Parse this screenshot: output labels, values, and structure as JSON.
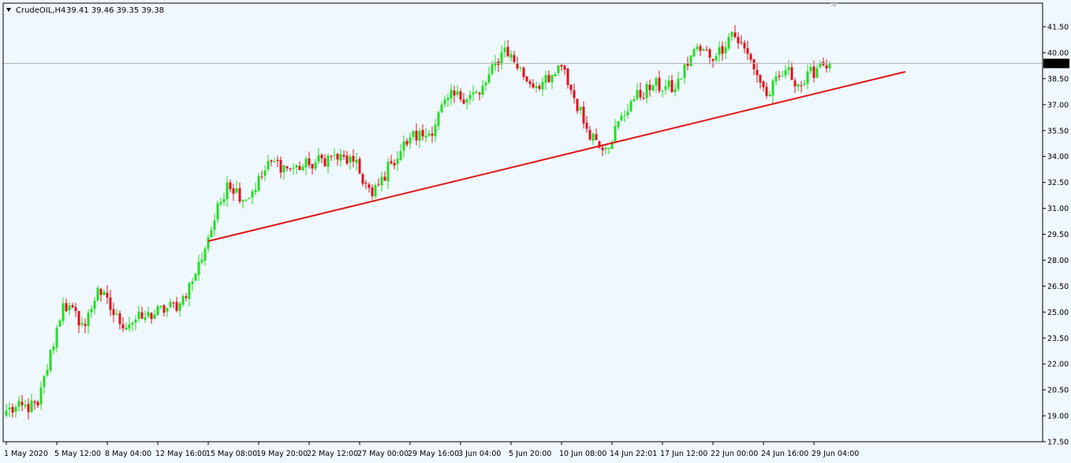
{
  "window": {
    "symbol": "CrudeOIL,H4",
    "ohlc": "39.41 39.46 39.35 39.38",
    "dropdown_icon": "triangle-down-icon",
    "scroll_marker_icon": "triangle-down-icon"
  },
  "colors": {
    "background": "#f0f8ff",
    "bull": "#22dd22",
    "bear": "#e0101a",
    "trendline": "#e01515",
    "axis": "#000000",
    "price_line": "#b4b4b4",
    "price_label_bg": "#000000",
    "price_label_fg": "#ffffff"
  },
  "chart_data": {
    "type": "candlestick",
    "symbol": "CrudeOIL",
    "timeframe": "H4",
    "current_price": 39.38,
    "current_price_label": "39.38",
    "y_range": [
      17.5,
      43.0
    ],
    "y_ticks": [
      "41.50",
      "40.00",
      "38.50",
      "37.00",
      "35.50",
      "34.00",
      "32.50",
      "31.00",
      "29.50",
      "28.00",
      "26.50",
      "25.00",
      "23.50",
      "22.00",
      "20.50",
      "19.00",
      "17.50"
    ],
    "x_ticks": [
      "1 May 2020",
      "5 May 12:00",
      "8 May 04:00",
      "12 May 16:00",
      "15 May 08:00",
      "19 May 20:00",
      "22 May 12:00",
      "27 May 00:00",
      "29 May 16:00",
      "3 Jun 04:00",
      "5 Jun 20:00",
      "10 Jun 08:00",
      "14 Jun 22:01",
      "17 Jun 12:00",
      "22 Jun 00:00",
      "24 Jun 16:00",
      "29 Jun 04:00"
    ],
    "x_tick_index": [
      0,
      16,
      32,
      48,
      64,
      80,
      96,
      112,
      128,
      144,
      160,
      176,
      192,
      208,
      224,
      240,
      256
    ],
    "key_closes": [
      [
        0,
        19.3
      ],
      [
        10,
        19.6
      ],
      [
        18,
        25.5
      ],
      [
        25,
        24.2
      ],
      [
        29,
        26.4
      ],
      [
        36,
        24.3
      ],
      [
        44,
        24.7
      ],
      [
        55,
        25.5
      ],
      [
        60,
        27.2
      ],
      [
        64,
        29.3
      ],
      [
        70,
        32.5
      ],
      [
        76,
        31.5
      ],
      [
        84,
        33.7
      ],
      [
        90,
        33.3
      ],
      [
        96,
        33.5
      ],
      [
        103,
        34.0
      ],
      [
        110,
        33.7
      ],
      [
        116,
        31.7
      ],
      [
        122,
        33.6
      ],
      [
        128,
        35.1
      ],
      [
        134,
        35.3
      ],
      [
        140,
        37.4
      ],
      [
        150,
        37.6
      ],
      [
        158,
        40.3
      ],
      [
        166,
        38.2
      ],
      [
        172,
        38.3
      ],
      [
        176,
        39.2
      ],
      [
        184,
        35.6
      ],
      [
        190,
        34.5
      ],
      [
        198,
        37.2
      ],
      [
        205,
        38.1
      ],
      [
        212,
        37.9
      ],
      [
        218,
        40.2
      ],
      [
        225,
        39.8
      ],
      [
        230,
        41.2
      ],
      [
        236,
        39.6
      ],
      [
        241,
        37.5
      ],
      [
        247,
        39.0
      ],
      [
        252,
        38.1
      ],
      [
        258,
        39.4
      ],
      [
        261,
        39.38
      ]
    ],
    "trendline": {
      "color": "red",
      "start": {
        "index": 64,
        "price": 29.1
      },
      "end": {
        "index": 285,
        "price": 38.9
      }
    },
    "grid": false,
    "legend": "none"
  }
}
